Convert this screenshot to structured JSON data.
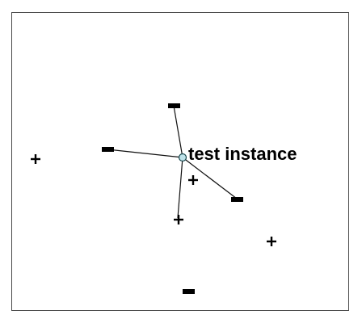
{
  "diagram": {
    "test_instance_label": "test instance",
    "query_point": {
      "id": "test-instance",
      "fill": "#bfe3ea",
      "stroke": "#1b4a50"
    },
    "neighbors": [
      {
        "id": "nn-top",
        "class": "negative"
      },
      {
        "id": "nn-left",
        "class": "negative"
      },
      {
        "id": "nn-right-down",
        "class": "negative"
      },
      {
        "id": "nn-below",
        "class": "positive"
      }
    ],
    "points": [
      {
        "id": "p-left-far",
        "class": "positive"
      },
      {
        "id": "nn-top",
        "class": "negative"
      },
      {
        "id": "nn-left",
        "class": "negative"
      },
      {
        "id": "p-near-center",
        "class": "positive"
      },
      {
        "id": "nn-right-down",
        "class": "negative"
      },
      {
        "id": "nn-below",
        "class": "positive"
      },
      {
        "id": "p-right-low",
        "class": "positive"
      },
      {
        "id": "p-bottom",
        "class": "negative"
      }
    ]
  }
}
